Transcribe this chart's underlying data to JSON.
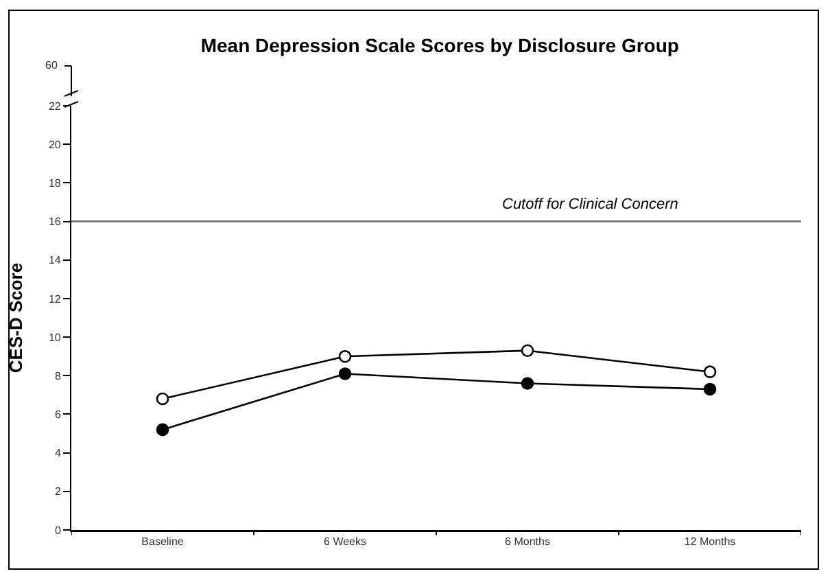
{
  "chart_data": {
    "type": "line",
    "title": "Mean Depression Scale Scores by Disclosure Group",
    "ylabel": "CES-D Score",
    "categories": [
      "Baseline",
      "6 Weeks",
      "6 Months",
      "12 Months"
    ],
    "series": [
      {
        "color": "#000000",
        "marker": "circle-open",
        "values": [
          6.8,
          9.0,
          9.3,
          8.2
        ]
      },
      {
        "color": "#000000",
        "marker": "circle",
        "values": [
          5.2,
          8.1,
          7.6,
          7.3
        ]
      }
    ],
    "ylim": [
      0,
      22
    ],
    "yticks": [
      0,
      2,
      4,
      6,
      8,
      10,
      12,
      14,
      16,
      18,
      20,
      22
    ],
    "grid": false,
    "annotations": [
      "60"
    ],
    "ref_lines": [
      {
        "axis": "y",
        "value": 16,
        "label": "Cutoff for Clinical Concern",
        "color": "#808080"
      }
    ]
  }
}
